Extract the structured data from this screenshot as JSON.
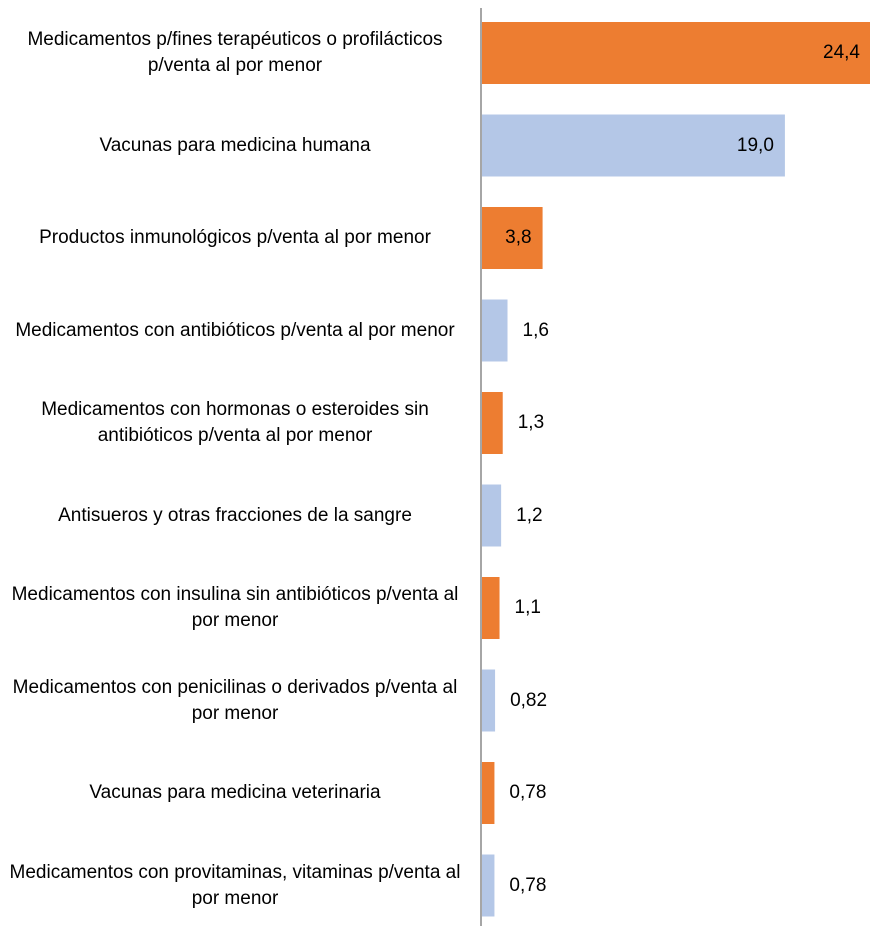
{
  "chart_data": {
    "type": "barh",
    "categories": [
      "Medicamentos p/fines terapéuticos o profilácticos p/venta al por menor",
      "Vacunas para medicina humana",
      "Productos inmunológicos p/venta al por menor",
      "Medicamentos con antibióticos p/venta al por menor",
      "Medicamentos con hormonas o esteroides sin antibióticos p/venta al por menor",
      "Antisueros y otras fracciones de la sangre",
      "Medicamentos con insulina sin antibióticos p/venta al por menor",
      "Medicamentos con penicilinas o derivados p/venta al por menor",
      "Vacunas para medicina veterinaria",
      "Medicamentos con provitaminas, vitaminas p/venta al por menor"
    ],
    "values": [
      24.4,
      19.0,
      3.8,
      1.6,
      1.3,
      1.2,
      1.1,
      0.82,
      0.78,
      0.78
    ],
    "value_labels": [
      "24,4",
      "19,0",
      "3,8",
      "1,6",
      "1,3",
      "1,2",
      "1,1",
      "0,82",
      "0,78",
      "0,78"
    ],
    "colors": [
      "#ED7D31",
      "#B4C7E7",
      "#ED7D31",
      "#B4C7E7",
      "#ED7D31",
      "#B4C7E7",
      "#ED7D31",
      "#B4C7E7",
      "#ED7D31",
      "#B4C7E7"
    ]
  }
}
